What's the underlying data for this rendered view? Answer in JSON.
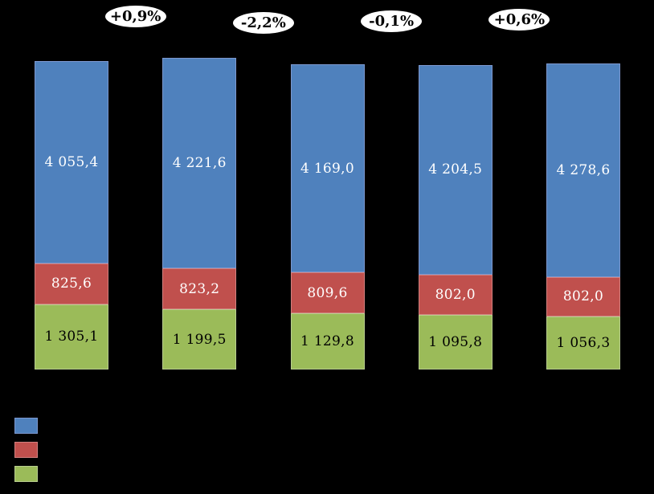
{
  "chart_data": {
    "type": "bar",
    "stacked": true,
    "background_color": "#000000",
    "bar_count": 5,
    "categories": [
      "",
      "",
      "",
      "",
      ""
    ],
    "axis_tick_labels_visible": false,
    "gridlines": false,
    "stack_order": "first-series-on-top",
    "series": [
      {
        "name": "blue",
        "color": "#4F81BD",
        "border_color": "#7C97CE",
        "label_color": "#FFFFFF",
        "values": [
          4055.4,
          4221.6,
          4169.0,
          4204.5,
          4278.6
        ],
        "labels": [
          "4 055,4",
          "4 221,6",
          "4 169,0",
          "4 204,5",
          "4 278,6"
        ]
      },
      {
        "name": "red",
        "color": "#C0504D",
        "border_color": "#D3817F",
        "label_color": "#FFFFFF",
        "values": [
          825.6,
          823.2,
          809.6,
          802.0,
          802.0
        ],
        "labels": [
          "825,6",
          "823,2",
          "809,6",
          "802,0",
          "802,0"
        ]
      },
      {
        "name": "green",
        "color": "#9BBB59",
        "border_color": "#B9CE8F",
        "label_color": "#000000",
        "values": [
          1305.1,
          1199.5,
          1129.8,
          1095.8,
          1056.3
        ],
        "labels": [
          "1 305,1",
          "1 199,5",
          "1 129,8",
          "1 095,8",
          "1 056,3"
        ]
      }
    ],
    "change_callouts": [
      {
        "label": "+0,9%"
      },
      {
        "label": "-2,2%"
      },
      {
        "label": "-0,1%"
      },
      {
        "label": "+0,6%"
      }
    ],
    "legend": {
      "position": "bottom-left",
      "labels_visible": false,
      "items": [
        {
          "name": "blue",
          "color": "#4F81BD",
          "border_color": "#7C97CE",
          "label": ""
        },
        {
          "name": "red",
          "color": "#C0504D",
          "border_color": "#D3817F",
          "label": ""
        },
        {
          "name": "green",
          "color": "#9BBB59",
          "border_color": "#B9CE8F",
          "label": ""
        }
      ]
    }
  }
}
